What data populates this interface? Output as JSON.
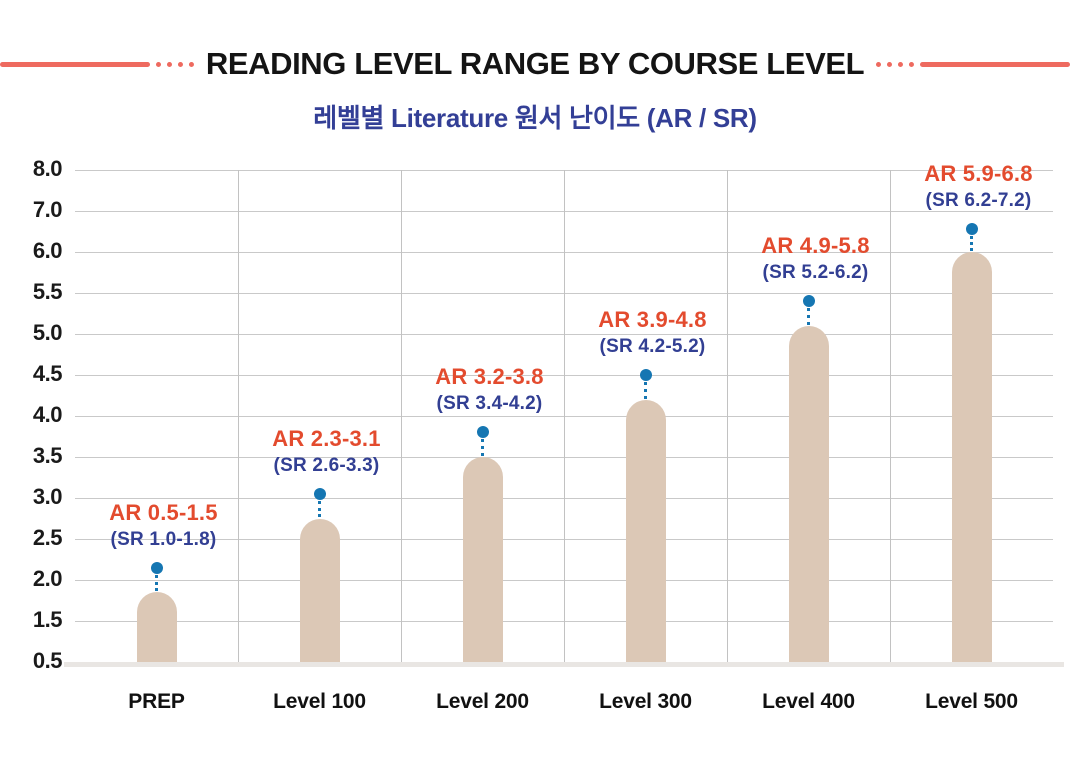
{
  "header": {
    "title": "READING LEVEL RANGE BY COURSE LEVEL",
    "subtitle": "레벨별 Literature 원서 난이도 (AR / SR)"
  },
  "colors": {
    "accent_line": "#ee6a5f",
    "title_text": "#141414",
    "subtitle_text": "#333f96",
    "ar_label": "#e34b2e",
    "sr_label": "#323f93",
    "marker_dot": "#1576b2",
    "bar_fill": "#dcc8b6",
    "h_gridline": "#c9c9c9",
    "v_gridline": "#c2c2c2",
    "baseline_band": "#e9e6e3",
    "axis_text": "#1a1a1a"
  },
  "chart_data": {
    "type": "bar",
    "title": "READING LEVEL RANGE BY COURSE LEVEL",
    "subtitle": "레벨별 Literature 원서 난이도 (AR / SR)",
    "categories": [
      "PREP",
      "Level 100",
      "Level 200",
      "Level 300",
      "Level 400",
      "Level 500"
    ],
    "y_ticks": [
      "0.5",
      "1.5",
      "2.0",
      "2.5",
      "3.0",
      "3.5",
      "4.0",
      "4.5",
      "5.0",
      "5.5",
      "6.0",
      "7.0",
      "8.0"
    ],
    "y_tick_values": [
      0.5,
      1.5,
      2.0,
      2.5,
      3.0,
      3.5,
      4.0,
      4.5,
      5.0,
      5.5,
      6.0,
      7.0,
      8.0
    ],
    "ylim": [
      0.5,
      8.0
    ],
    "axis_note": "gridlines equally spaced; value steps vary (non-linear axis)",
    "grid": true,
    "legend": false,
    "series": [
      {
        "category": "PREP",
        "ar_label": "AR 0.5-1.5",
        "sr_label": "(SR 1.0-1.8)",
        "ar_range": [
          0.5,
          1.5
        ],
        "sr_range": [
          1.0,
          1.8
        ],
        "bar_top": 1.85,
        "marker": 2.15
      },
      {
        "category": "Level 100",
        "ar_label": "AR 2.3-3.1",
        "sr_label": "(SR 2.6-3.3)",
        "ar_range": [
          2.3,
          3.1
        ],
        "sr_range": [
          2.6,
          3.3
        ],
        "bar_top": 2.75,
        "marker": 3.05
      },
      {
        "category": "Level 200",
        "ar_label": "AR 3.2-3.8",
        "sr_label": "(SR 3.4-4.2)",
        "ar_range": [
          3.2,
          3.8
        ],
        "sr_range": [
          3.4,
          4.2
        ],
        "bar_top": 3.5,
        "marker": 3.8
      },
      {
        "category": "Level 300",
        "ar_label": "AR 3.9-4.8",
        "sr_label": "(SR 4.2-5.2)",
        "ar_range": [
          3.9,
          4.8
        ],
        "sr_range": [
          4.2,
          5.2
        ],
        "bar_top": 4.2,
        "marker": 4.5
      },
      {
        "category": "Level 400",
        "ar_label": "AR 4.9-5.8",
        "sr_label": "(SR 5.2-6.2)",
        "ar_range": [
          4.9,
          5.8
        ],
        "sr_range": [
          5.2,
          6.2
        ],
        "bar_top": 5.1,
        "marker": 5.4
      },
      {
        "category": "Level 500",
        "ar_label": "AR 5.9-6.8",
        "sr_label": "(SR 6.2-7.2)",
        "ar_range": [
          5.9,
          6.8
        ],
        "sr_range": [
          6.2,
          7.2
        ],
        "bar_top": 6.0,
        "marker": 6.55
      }
    ]
  }
}
